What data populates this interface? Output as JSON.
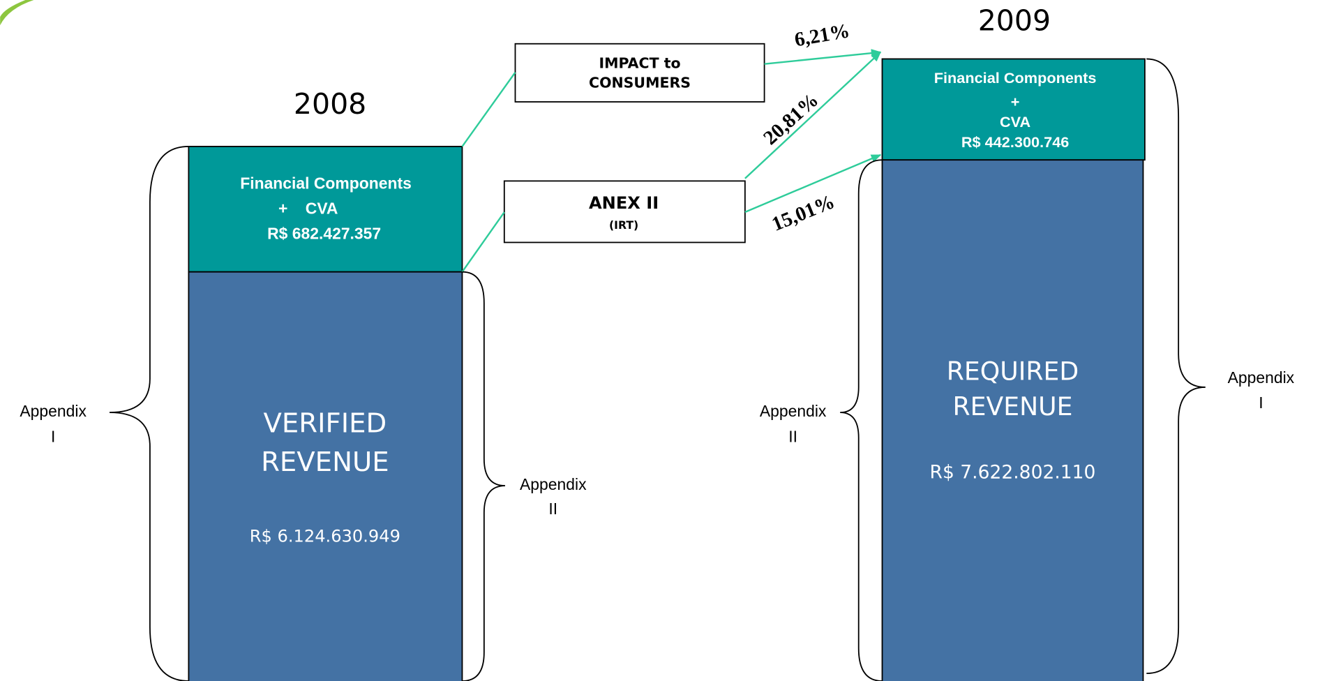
{
  "years": {
    "left": "2008",
    "right": "2009"
  },
  "left_column": {
    "top_box": {
      "title": "Financial Components",
      "line2": "+    CVA",
      "amount": "R$ 682.427.357"
    },
    "bottom_box": {
      "line1": "VERIFIED",
      "line2": "REVENUE",
      "amount": "R$ 6.124.630.949"
    }
  },
  "right_column": {
    "top_box": {
      "title": "Financial Components",
      "line2": "+",
      "line3": "CVA",
      "amount": "R$ 442.300.746"
    },
    "bottom_box": {
      "line1": "REQUIRED",
      "line2": "REVENUE",
      "amount": "R$ 7.622.802.110"
    }
  },
  "impact_box": {
    "line1": "IMPACT to",
    "line2": "CONSUMERS"
  },
  "anex_box": {
    "line1": "ANEX II",
    "line2": "(IRT)"
  },
  "percentages": {
    "impact": "6,21%",
    "anex_upper": "20,81%",
    "anex_lower": "15,01%"
  },
  "appendix_labels": {
    "left_outer": {
      "line1": "Appendix",
      "line2": "I"
    },
    "left_inner": {
      "line1": "Appendix",
      "line2": "II"
    },
    "right_inner": {
      "line1": "Appendix",
      "line2": "II"
    },
    "right_outer": {
      "line1": "Appendix",
      "line2": "I"
    }
  }
}
